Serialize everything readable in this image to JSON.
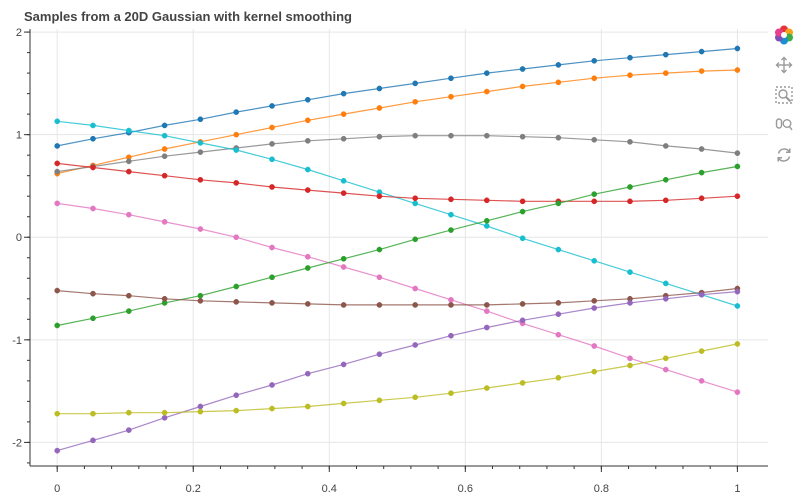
{
  "chart_data": {
    "type": "line",
    "title": "Samples from a 20D Gaussian with kernel smoothing",
    "xlabel": "",
    "ylabel": "",
    "xlim": [
      -0.04,
      1.045
    ],
    "ylim": [
      -2.23,
      2.03
    ],
    "grid": true,
    "legend": "none",
    "x_ticks": [
      0,
      0.2,
      0.4,
      0.6,
      0.8,
      1
    ],
    "x_tick_labels": [
      "0",
      "0.2",
      "0.4",
      "0.6",
      "0.8",
      "1"
    ],
    "y_ticks": [
      2,
      1,
      0,
      -1,
      -2
    ],
    "y_tick_labels": [
      "2",
      "1",
      "0",
      "-1",
      "-2"
    ],
    "x": [
      0,
      0.0526,
      0.1053,
      0.1579,
      0.2105,
      0.2632,
      0.3158,
      0.3684,
      0.4211,
      0.4737,
      0.5263,
      0.5789,
      0.6316,
      0.6842,
      0.7368,
      0.7895,
      0.8421,
      0.8947,
      0.9474,
      1.0
    ],
    "series": [
      {
        "color": "#1f77b4",
        "values": [
          0.89,
          0.96,
          1.02,
          1.09,
          1.15,
          1.22,
          1.28,
          1.34,
          1.4,
          1.45,
          1.5,
          1.55,
          1.6,
          1.64,
          1.68,
          1.72,
          1.75,
          1.78,
          1.81,
          1.84
        ]
      },
      {
        "color": "#ff7f0e",
        "values": [
          0.62,
          0.7,
          0.78,
          0.86,
          0.93,
          1.0,
          1.07,
          1.14,
          1.2,
          1.26,
          1.32,
          1.37,
          1.42,
          1.47,
          1.51,
          1.55,
          1.58,
          1.6,
          1.62,
          1.63
        ]
      },
      {
        "color": "#7f7f7f",
        "values": [
          0.64,
          0.69,
          0.74,
          0.79,
          0.83,
          0.87,
          0.91,
          0.94,
          0.96,
          0.98,
          0.99,
          0.99,
          0.99,
          0.98,
          0.97,
          0.95,
          0.93,
          0.89,
          0.86,
          0.82
        ]
      },
      {
        "color": "#17becf",
        "values": [
          1.13,
          1.09,
          1.04,
          0.99,
          0.92,
          0.85,
          0.76,
          0.66,
          0.55,
          0.44,
          0.33,
          0.22,
          0.11,
          -0.01,
          -0.12,
          -0.23,
          -0.34,
          -0.45,
          -0.56,
          -0.67
        ]
      },
      {
        "color": "#d62728",
        "values": [
          0.72,
          0.68,
          0.64,
          0.6,
          0.56,
          0.53,
          0.49,
          0.46,
          0.43,
          0.4,
          0.38,
          0.37,
          0.36,
          0.35,
          0.35,
          0.35,
          0.35,
          0.36,
          0.38,
          0.4
        ]
      },
      {
        "color": "#e377c2",
        "values": [
          0.33,
          0.28,
          0.22,
          0.15,
          0.08,
          0.0,
          -0.1,
          -0.19,
          -0.29,
          -0.39,
          -0.5,
          -0.61,
          -0.72,
          -0.84,
          -0.95,
          -1.06,
          -1.18,
          -1.29,
          -1.4,
          -1.51
        ]
      },
      {
        "color": "#2ca02c",
        "values": [
          -0.86,
          -0.79,
          -0.72,
          -0.64,
          -0.57,
          -0.48,
          -0.39,
          -0.3,
          -0.21,
          -0.12,
          -0.02,
          0.07,
          0.16,
          0.25,
          0.33,
          0.42,
          0.49,
          0.56,
          0.63,
          0.69
        ]
      },
      {
        "color": "#8c564b",
        "values": [
          -0.52,
          -0.55,
          -0.57,
          -0.6,
          -0.62,
          -0.63,
          -0.64,
          -0.65,
          -0.66,
          -0.66,
          -0.66,
          -0.66,
          -0.66,
          -0.65,
          -0.64,
          -0.62,
          -0.6,
          -0.57,
          -0.54,
          -0.5
        ]
      },
      {
        "color": "#9467bd",
        "values": [
          -2.08,
          -1.98,
          -1.88,
          -1.76,
          -1.65,
          -1.54,
          -1.44,
          -1.33,
          -1.24,
          -1.14,
          -1.05,
          -0.96,
          -0.88,
          -0.81,
          -0.75,
          -0.69,
          -0.64,
          -0.6,
          -0.56,
          -0.53
        ]
      },
      {
        "color": "#bcbd22",
        "values": [
          -1.72,
          -1.72,
          -1.71,
          -1.71,
          -1.7,
          -1.69,
          -1.67,
          -1.65,
          -1.62,
          -1.59,
          -1.56,
          -1.52,
          -1.47,
          -1.42,
          -1.37,
          -1.31,
          -1.25,
          -1.18,
          -1.11,
          -1.04
        ]
      }
    ]
  },
  "toolbar": {
    "tools": [
      "bokeh-logo-icon",
      "pan-icon",
      "box-zoom-icon",
      "wheel-zoom-icon",
      "reset-icon"
    ]
  }
}
